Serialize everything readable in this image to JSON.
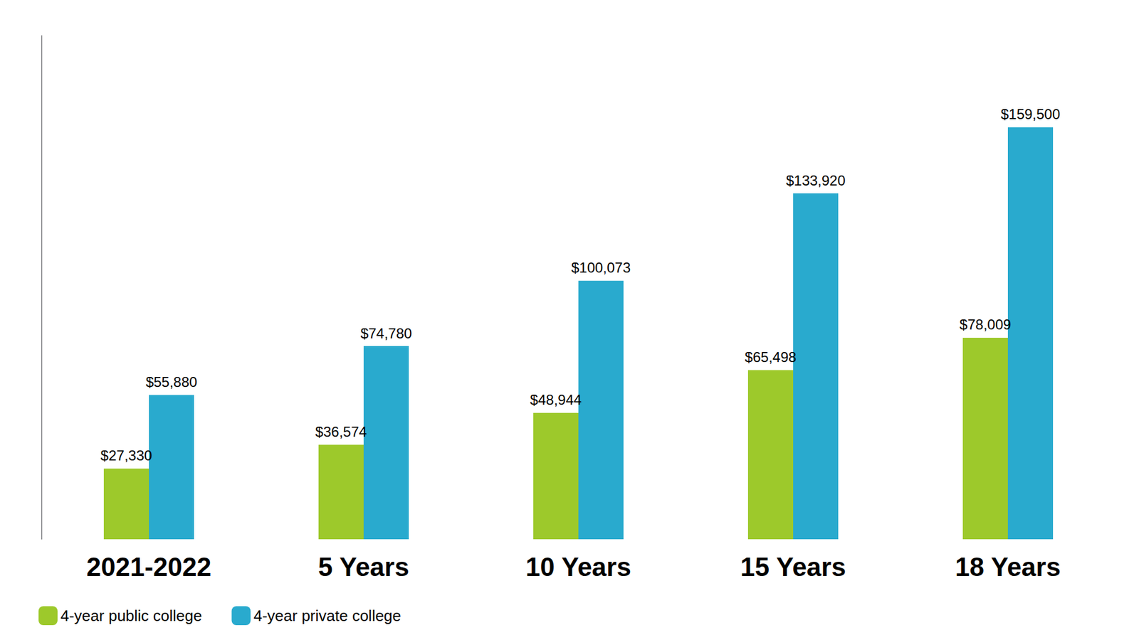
{
  "chart_data": {
    "type": "bar",
    "categories": [
      "2021-2022",
      "5 Years",
      "10 Years",
      "15 Years",
      "18 Years"
    ],
    "series": [
      {
        "name": "4-year public college",
        "color": "#9DC92B",
        "values": [
          27330,
          36574,
          48944,
          65498,
          78009
        ],
        "value_labels": [
          "$27,330",
          "$36,574",
          "$48,944",
          "$65,498",
          "$78,009"
        ]
      },
      {
        "name": "4-year private college",
        "color": "#29AACE",
        "values": [
          55880,
          74780,
          100073,
          133920,
          159500
        ],
        "value_labels": [
          "$55,880",
          "$74,780",
          "$100,073",
          "$133,920",
          "$159,500"
        ]
      }
    ],
    "ylim": [
      0,
      195000
    ],
    "grid": false,
    "legend": "lower left",
    "data_labels": true,
    "tick_labels": "x"
  }
}
